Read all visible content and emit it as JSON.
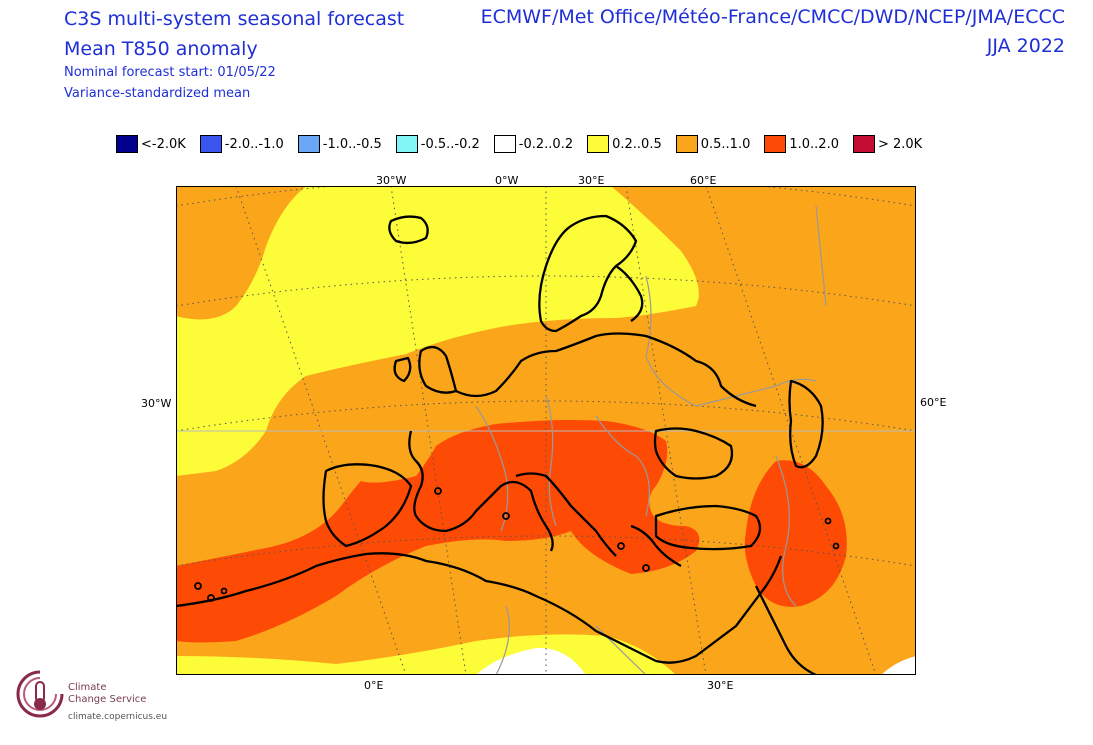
{
  "header": {
    "title_line1": "C3S multi-system seasonal forecast",
    "title_line2": "Mean T850 anomaly",
    "subtitle_line1": "Nominal forecast start: 01/05/22",
    "subtitle_line2": "Variance-standardized mean",
    "centres": "ECMWF/Met Office/Météo-France/CMCC/DWD/NCEP/JMA/ECCC",
    "season": "JJA 2022"
  },
  "legend": {
    "items": [
      {
        "label": "<-2.0K",
        "color": "#00008c"
      },
      {
        "label": "-2.0..-1.0",
        "color": "#3a55f0"
      },
      {
        "label": "-1.0..-0.5",
        "color": "#6aa8f5"
      },
      {
        "label": "-0.5..-0.2",
        "color": "#7ff5f5"
      },
      {
        "label": "-0.2..0.2",
        "color": "#ffffff"
      },
      {
        "label": "0.2..0.5",
        "color": "#fcfc38"
      },
      {
        "label": "0.5..1.0",
        "color": "#fba51b"
      },
      {
        "label": "1.0..2.0",
        "color": "#fd4b06"
      },
      {
        "label": "> 2.0K",
        "color": "#c60c33"
      }
    ]
  },
  "map": {
    "top_labels": [
      "30°W",
      "0°W",
      "30°E",
      "60°E"
    ],
    "bottom_labels": [
      "0°E",
      "30°E"
    ],
    "left_label": "30°W",
    "right_label": "60°E"
  },
  "logo": {
    "line1": "Climate",
    "line2": "Change Service",
    "url": "climate.copernicus.eu"
  }
}
